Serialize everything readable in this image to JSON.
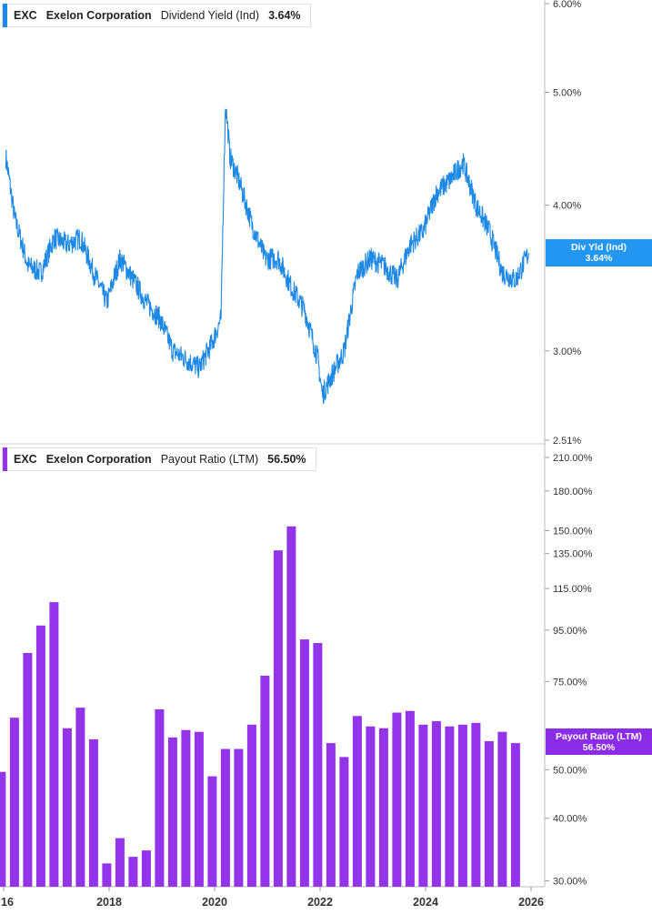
{
  "top_panel": {
    "legend": {
      "ticker": "EXC",
      "company": "Exelon Corporation",
      "metric": "Dividend Yield (Ind)",
      "value": "3.64%"
    },
    "tag": {
      "label": "Div Yld (Ind)",
      "value": "3.64%"
    },
    "y_ticks": [
      "6.00%",
      "5.00%",
      "4.00%",
      "3.00%",
      "2.51%"
    ]
  },
  "bottom_panel": {
    "legend": {
      "ticker": "EXC",
      "company": "Exelon Corporation",
      "metric": "Payout Ratio (LTM)",
      "value": "56.50%"
    },
    "tag": {
      "label": "Payout Ratio (LTM)",
      "value": "56.50%"
    },
    "y_ticks": [
      "210.00%",
      "180.00%",
      "150.00%",
      "135.00%",
      "115.00%",
      "95.00%",
      "75.00%",
      "50.00%",
      "40.00%",
      "30.00%"
    ]
  },
  "x_ticks": [
    "16",
    "2018",
    "2020",
    "2022",
    "2024",
    "2026"
  ],
  "colors": {
    "yield_line": "#1e88e5",
    "payout_bars": "#9333ea",
    "tag_blue": "#2196f3",
    "tag_purple": "#8b2ce8",
    "axis": "#999999",
    "text": "#333333"
  },
  "chart_data": [
    {
      "type": "line",
      "title": "EXC Exelon Corporation Dividend Yield (Ind)",
      "scale": "log",
      "ylim": [
        2.51,
        6.0
      ],
      "x": [
        "2016-01",
        "2016-03",
        "2016-06",
        "2016-09",
        "2016-12",
        "2017-03",
        "2017-06",
        "2017-09",
        "2017-12",
        "2018-03",
        "2018-06",
        "2018-09",
        "2018-12",
        "2019-03",
        "2019-06",
        "2019-09",
        "2019-12",
        "2020-02",
        "2020-03",
        "2020-04",
        "2020-06",
        "2020-09",
        "2020-12",
        "2021-03",
        "2021-06",
        "2021-09",
        "2021-12",
        "2022-01",
        "2022-03",
        "2022-06",
        "2022-09",
        "2022-12",
        "2023-03",
        "2023-06",
        "2023-09",
        "2023-12",
        "2024-03",
        "2024-06",
        "2024-09",
        "2024-12",
        "2025-03",
        "2025-06",
        "2025-09",
        "2025-12"
      ],
      "y": [
        4.4,
        3.9,
        3.55,
        3.5,
        3.75,
        3.7,
        3.75,
        3.5,
        3.3,
        3.6,
        3.45,
        3.3,
        3.2,
        3.0,
        2.95,
        2.9,
        3.05,
        3.2,
        4.9,
        4.4,
        4.2,
        3.85,
        3.6,
        3.6,
        3.4,
        3.25,
        2.95,
        2.75,
        2.85,
        3.0,
        3.5,
        3.6,
        3.55,
        3.45,
        3.7,
        3.8,
        4.1,
        4.2,
        4.35,
        4.0,
        3.8,
        3.5,
        3.45,
        3.64
      ],
      "series": [
        {
          "name": "Dividend Yield (Ind)"
        }
      ]
    },
    {
      "type": "bar",
      "title": "EXC Exelon Corporation Payout Ratio (LTM)",
      "scale": "log",
      "ylim": [
        29,
        210
      ],
      "categories": [
        "2015-Q4",
        "2016-Q1",
        "2016-Q2",
        "2016-Q3",
        "2016-Q4",
        "2017-Q1",
        "2017-Q2",
        "2017-Q3",
        "2017-Q4",
        "2018-Q1",
        "2018-Q2",
        "2018-Q3",
        "2018-Q4",
        "2019-Q1",
        "2019-Q2",
        "2019-Q3",
        "2019-Q4",
        "2020-Q1",
        "2020-Q2",
        "2020-Q3",
        "2020-Q4",
        "2021-Q1",
        "2021-Q2",
        "2021-Q3",
        "2021-Q4",
        "2022-Q1",
        "2022-Q2",
        "2022-Q3",
        "2022-Q4",
        "2023-Q1",
        "2023-Q2",
        "2023-Q3",
        "2023-Q4",
        "2024-Q1",
        "2024-Q2",
        "2024-Q3",
        "2024-Q4",
        "2025-Q1",
        "2025-Q2",
        "2025-Q3"
      ],
      "values": [
        49.5,
        63.5,
        85.5,
        97,
        108,
        60.5,
        66.5,
        57.5,
        32.5,
        36.5,
        33.5,
        34.5,
        66,
        58,
        60,
        59.5,
        48.5,
        55,
        55,
        61.5,
        77,
        137,
        153,
        91,
        89.5,
        56.5,
        53,
        64,
        61,
        60.5,
        65,
        65.5,
        61.5,
        62.5,
        61,
        61.5,
        62,
        57,
        59.5,
        56.5
      ],
      "series": [
        {
          "name": "Payout Ratio (LTM)"
        }
      ]
    }
  ]
}
